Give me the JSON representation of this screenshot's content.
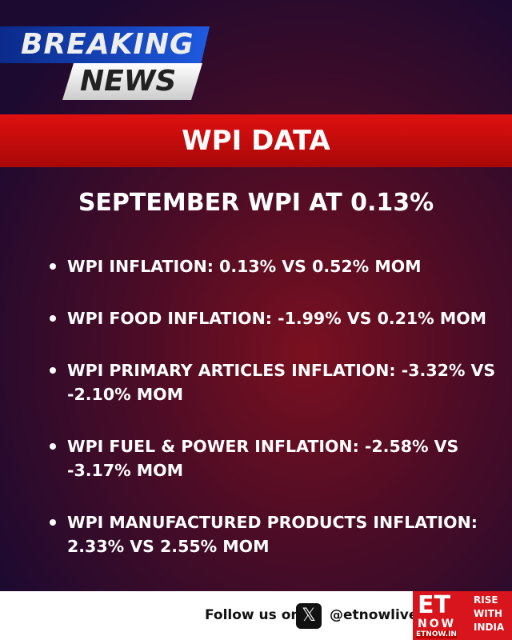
{
  "logo": {
    "line1": "BREAKING",
    "line2": "NEWS"
  },
  "band": "WPI DATA",
  "headline": "SEPTEMBER WPI AT 0.13%",
  "bullets": [
    "WPI INFLATION: 0.13% VS 0.52% MOM",
    "WPI FOOD INFLATION: -1.99% VS 0.21% MOM",
    "WPI PRIMARY ARTICLES INFLATION: -3.32% VS -2.10% MOM",
    "WPI FUEL & POWER INFLATION: -2.58% VS -3.17% MOM",
    "WPI MANUFACTURED PRODUCTS INFLATION: 2.33% VS 2.55% MOM"
  ],
  "footer": {
    "follow": "Follow us on",
    "x_icon": "x-logo-icon",
    "handle": "@etnowlive",
    "et": "ET",
    "now": "NOW",
    "url": "ETNOW.IN",
    "tagline1": "RISE",
    "tagline2": "WITH",
    "tagline3": "INDIA"
  },
  "colors": {
    "band": "#d01010",
    "accent_blue": "#1f5ae0"
  }
}
